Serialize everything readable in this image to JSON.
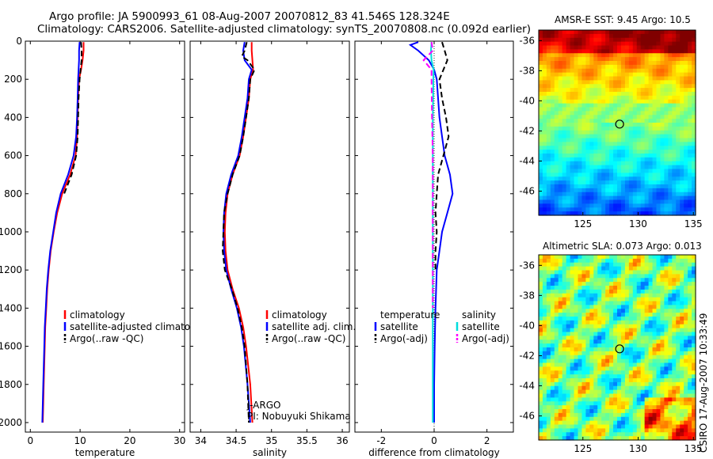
{
  "header": {
    "line1": "Argo profile: JA 5900993_61 08-Aug-2007 20070812_83 41.546S 128.324E",
    "line2": "Climatology: CARS2006. Satellite-adjusted climatology: synTS_20070808.nc (0.092d earlier)"
  },
  "maps": {
    "sst_title": "AMSR-E SST: 9.45 Argo: 10.5",
    "sla_title": "Altimetric SLA: 0.073 Argo: 0.013",
    "credit": "CSIRO 17-Aug-2007 10:33:49",
    "xticks": [
      "125",
      "130",
      "135"
    ],
    "yticks": [
      "-36",
      "-38",
      "-40",
      "-42",
      "-44",
      "-46"
    ],
    "float_lon": 128.324,
    "float_lat": -41.546
  },
  "chart_data": [
    {
      "type": "line",
      "panel": "temperature",
      "xlabel": "temperature",
      "ylabel": "",
      "xlim": [
        -1,
        31
      ],
      "ylim": [
        2050,
        0
      ],
      "xticks": [
        "0",
        "10",
        "20",
        "30"
      ],
      "yticks": [
        "0",
        "200",
        "400",
        "600",
        "800",
        "1000",
        "1200",
        "1400",
        "1600",
        "1800",
        "2000"
      ],
      "legend": [
        "climatology",
        "satellite-adjusted climatology",
        "Argo(..raw -QC)"
      ],
      "series": [
        {
          "name": "climatology",
          "color": "#ff0000",
          "dash": "solid",
          "depth": [
            5,
            50,
            100,
            150,
            200,
            300,
            400,
            500,
            600,
            700,
            800,
            900,
            1000,
            1100,
            1200,
            1300,
            1400,
            1500,
            1600,
            1800,
            2000
          ],
          "values": [
            10.7,
            10.7,
            10.5,
            10.2,
            9.8,
            9.6,
            9.5,
            9.4,
            9.1,
            8.0,
            6.4,
            5.4,
            4.7,
            4.1,
            3.7,
            3.4,
            3.2,
            3.0,
            2.9,
            2.7,
            2.5
          ]
        },
        {
          "name": "satellite-adjusted climatology",
          "color": "#0000ff",
          "dash": "solid",
          "depth": [
            5,
            50,
            100,
            150,
            200,
            300,
            400,
            500,
            600,
            700,
            800,
            900,
            1000,
            1100,
            1200,
            1300,
            1400,
            1500,
            1600,
            1800,
            2000
          ],
          "values": [
            9.9,
            9.8,
            9.8,
            9.7,
            9.6,
            9.5,
            9.4,
            9.2,
            8.7,
            7.6,
            6.1,
            5.2,
            4.6,
            4.0,
            3.6,
            3.3,
            3.1,
            2.9,
            2.8,
            2.6,
            2.4
          ]
        },
        {
          "name": "Argo(..raw -QC)",
          "color": "#000000",
          "dash": "dashed",
          "depth": [
            5,
            50,
            100,
            150,
            200,
            300,
            400,
            500,
            600,
            700,
            800
          ],
          "values": [
            10.2,
            10.3,
            10.3,
            10.1,
            9.9,
            9.7,
            9.6,
            9.5,
            9.2,
            8.3,
            6.8
          ]
        }
      ]
    },
    {
      "type": "line",
      "panel": "salinity",
      "xlabel": "salinity",
      "ylabel": "",
      "xlim": [
        33.85,
        36.1
      ],
      "ylim": [
        2050,
        0
      ],
      "xticks": [
        "34",
        "34.5",
        "35",
        "35.5",
        "36"
      ],
      "legend": [
        "climatology",
        "satellite adj. clim.",
        "Argo(..raw -QC)"
      ],
      "annotation": [
        "J-ARGO",
        "PI: Nobuyuki Shikama"
      ],
      "series": [
        {
          "name": "climatology",
          "color": "#ff0000",
          "dash": "solid",
          "depth": [
            5,
            50,
            100,
            150,
            200,
            300,
            400,
            500,
            600,
            700,
            800,
            900,
            1000,
            1100,
            1200,
            1300,
            1400,
            1500,
            1600,
            1800,
            2000
          ],
          "values": [
            34.72,
            34.72,
            34.73,
            34.74,
            34.7,
            34.68,
            34.64,
            34.6,
            34.55,
            34.45,
            34.38,
            34.35,
            34.34,
            34.35,
            34.38,
            34.45,
            34.54,
            34.6,
            34.64,
            34.7,
            34.73
          ]
        },
        {
          "name": "satellite adj. clim.",
          "color": "#0000ff",
          "dash": "solid",
          "depth": [
            5,
            50,
            100,
            150,
            200,
            300,
            400,
            500,
            600,
            700,
            800,
            900,
            1000,
            1100,
            1200,
            1300,
            1400,
            1500,
            1600,
            1800,
            2000
          ],
          "values": [
            34.62,
            34.6,
            34.62,
            34.72,
            34.68,
            34.66,
            34.62,
            34.58,
            34.53,
            34.43,
            34.36,
            34.33,
            34.32,
            34.33,
            34.36,
            34.43,
            34.51,
            34.57,
            34.61,
            34.66,
            34.7
          ]
        },
        {
          "name": "Argo(..raw -QC)",
          "color": "#000000",
          "dash": "dashed",
          "depth": [
            5,
            50,
            80,
            100,
            150,
            200,
            300,
            400,
            500,
            600,
            700,
            800,
            900,
            1000,
            1100,
            1200,
            1300,
            1400,
            1500,
            1600,
            1800,
            2000
          ],
          "values": [
            34.65,
            34.62,
            34.58,
            34.66,
            34.76,
            34.7,
            34.68,
            34.64,
            34.6,
            34.55,
            34.45,
            34.38,
            34.33,
            34.32,
            34.31,
            34.34,
            34.44,
            34.52,
            34.58,
            34.62,
            34.66,
            34.68
          ]
        }
      ]
    },
    {
      "type": "line",
      "panel": "difference",
      "xlabel": "difference from climatology",
      "ylabel": "",
      "xlim": [
        -3,
        3
      ],
      "ylim": [
        2050,
        0
      ],
      "xticks": [
        "-2",
        "0",
        "2"
      ],
      "legend": [
        "temperature",
        "satellite",
        "Argo(-adj)",
        "salinity",
        "satellite",
        "Argo(-adj)"
      ],
      "series": [
        {
          "name": "temperature satellite",
          "color": "#0000ff",
          "dash": "solid",
          "depth": [
            5,
            20,
            50,
            100,
            150,
            200,
            300,
            400,
            500,
            600,
            700,
            800,
            900,
            1000,
            1100,
            1200,
            1400,
            1600,
            1800,
            2000
          ],
          "values": [
            -0.6,
            -0.9,
            -0.6,
            -0.2,
            0.0,
            0.1,
            0.15,
            0.2,
            0.3,
            0.4,
            0.6,
            0.7,
            0.5,
            0.3,
            0.2,
            0.1,
            0.05,
            0.02,
            0.0,
            0.0
          ]
        },
        {
          "name": "temperature Argo(-adj)",
          "color": "#000000",
          "dash": "dashed",
          "depth": [
            5,
            50,
            100,
            150,
            200,
            300,
            400,
            500,
            600,
            700,
            800,
            900,
            1000,
            1100,
            1200
          ],
          "values": [
            0.3,
            0.4,
            0.5,
            0.35,
            0.2,
            0.3,
            0.45,
            0.55,
            0.35,
            0.15,
            0.1,
            0.05,
            0.1,
            0.05,
            0.05
          ]
        },
        {
          "name": "salinity satellite",
          "color": "#00dddd",
          "dash": "solid",
          "depth": [
            5,
            50,
            100,
            150,
            200,
            400,
            600,
            800,
            1000,
            1200,
            1400,
            1600,
            1800,
            2000
          ],
          "values": [
            -0.1,
            -0.12,
            -0.1,
            -0.02,
            -0.03,
            -0.05,
            -0.05,
            -0.05,
            -0.05,
            -0.05,
            -0.05,
            -0.05,
            -0.05,
            -0.05
          ]
        },
        {
          "name": "salinity Argo(-adj)",
          "color": "#ff00ff",
          "dash": "dashed",
          "depth": [
            5,
            50,
            100,
            150,
            200,
            400,
            600,
            800,
            1000,
            1200,
            1400
          ],
          "values": [
            -0.1,
            -0.05,
            -0.4,
            -0.1,
            -0.1,
            -0.08,
            -0.05,
            -0.05,
            -0.05,
            -0.05,
            -0.05
          ]
        }
      ]
    }
  ]
}
